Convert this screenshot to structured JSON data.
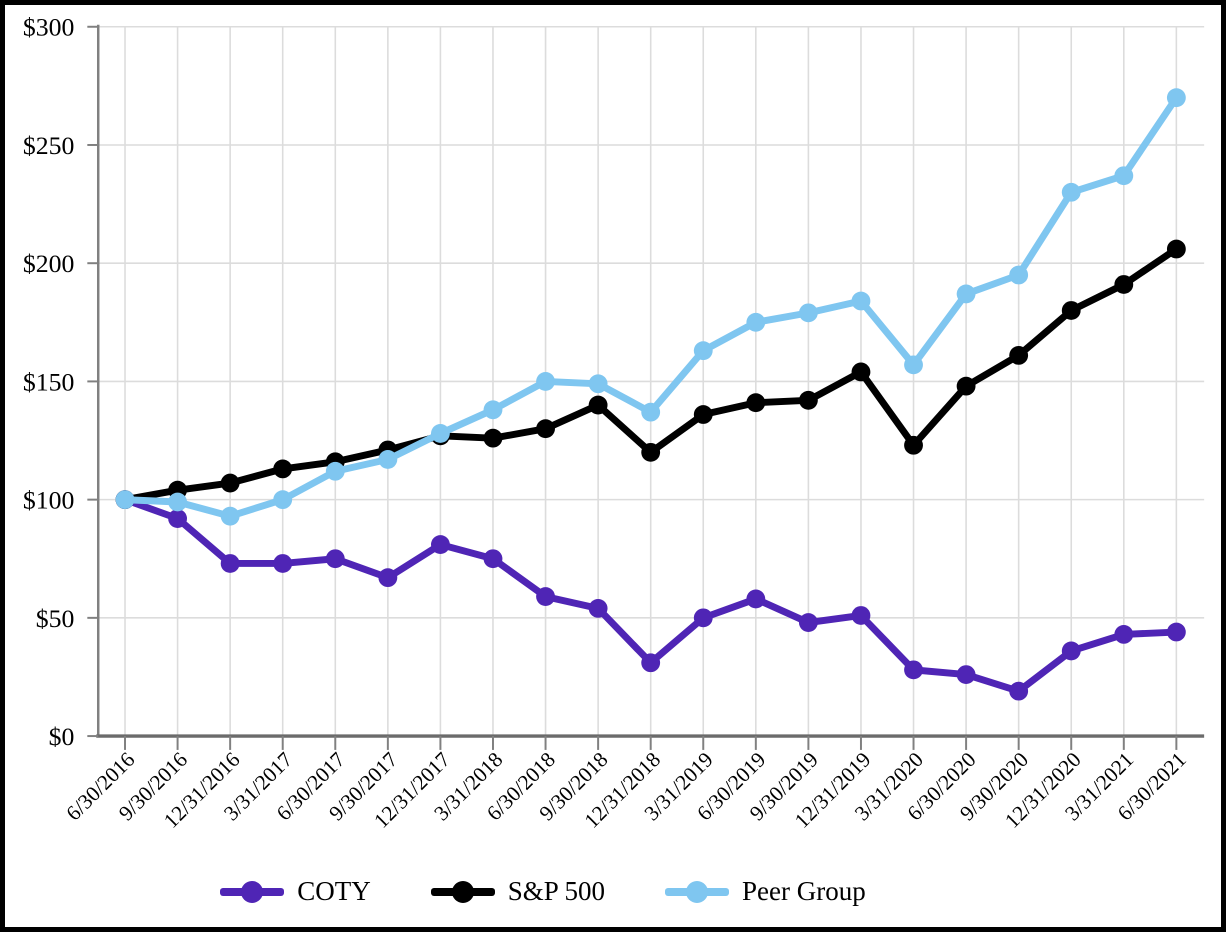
{
  "chart_data": {
    "type": "line",
    "title": "",
    "x": [
      "6/30/2016",
      "9/30/2016",
      "12/31/2016",
      "3/31/2017",
      "6/30/2017",
      "9/30/2017",
      "12/31/2017",
      "3/31/2018",
      "6/30/2018",
      "9/30/2018",
      "12/31/2018",
      "3/31/2019",
      "6/30/2019",
      "9/30/2019",
      "12/31/2019",
      "3/31/2020",
      "6/30/2020",
      "9/30/2020",
      "12/31/2020",
      "3/31/2021",
      "6/30/2021"
    ],
    "series": [
      {
        "name": "COTY",
        "color": "#4F25B5",
        "values": [
          100,
          92,
          73,
          73,
          75,
          67,
          81,
          75,
          59,
          54,
          31,
          50,
          58,
          48,
          51,
          28,
          26,
          19,
          36,
          43,
          44
        ]
      },
      {
        "name": "S&P 500",
        "color": "#000000",
        "values": [
          100,
          104,
          107,
          113,
          116,
          121,
          127,
          126,
          130,
          140,
          120,
          136,
          141,
          142,
          154,
          123,
          148,
          161,
          180,
          191,
          206
        ]
      },
      {
        "name": "Peer Group",
        "color": "#7FC6F0",
        "values": [
          100,
          99,
          93,
          100,
          112,
          117,
          128,
          138,
          150,
          149,
          137,
          163,
          175,
          179,
          184,
          157,
          187,
          195,
          230,
          237,
          270
        ]
      }
    ],
    "ylim": [
      0,
      300
    ],
    "ytick_values": [
      300,
      250,
      200,
      150,
      100,
      50,
      0
    ],
    "ytick_labels": [
      "$300",
      "$250",
      "$200",
      "$150",
      "$100",
      "$50",
      "$0"
    ],
    "grid": "both",
    "legend_position": "bottom",
    "styles": {
      "grid_color": "#DCDCDC",
      "y_axis_color": "#808080",
      "x_axis_color": "#6B6B6B",
      "tick_color": "#808080",
      "text_color": "#000000",
      "background": "#FFFFFF",
      "frame_border": "#000000"
    }
  }
}
